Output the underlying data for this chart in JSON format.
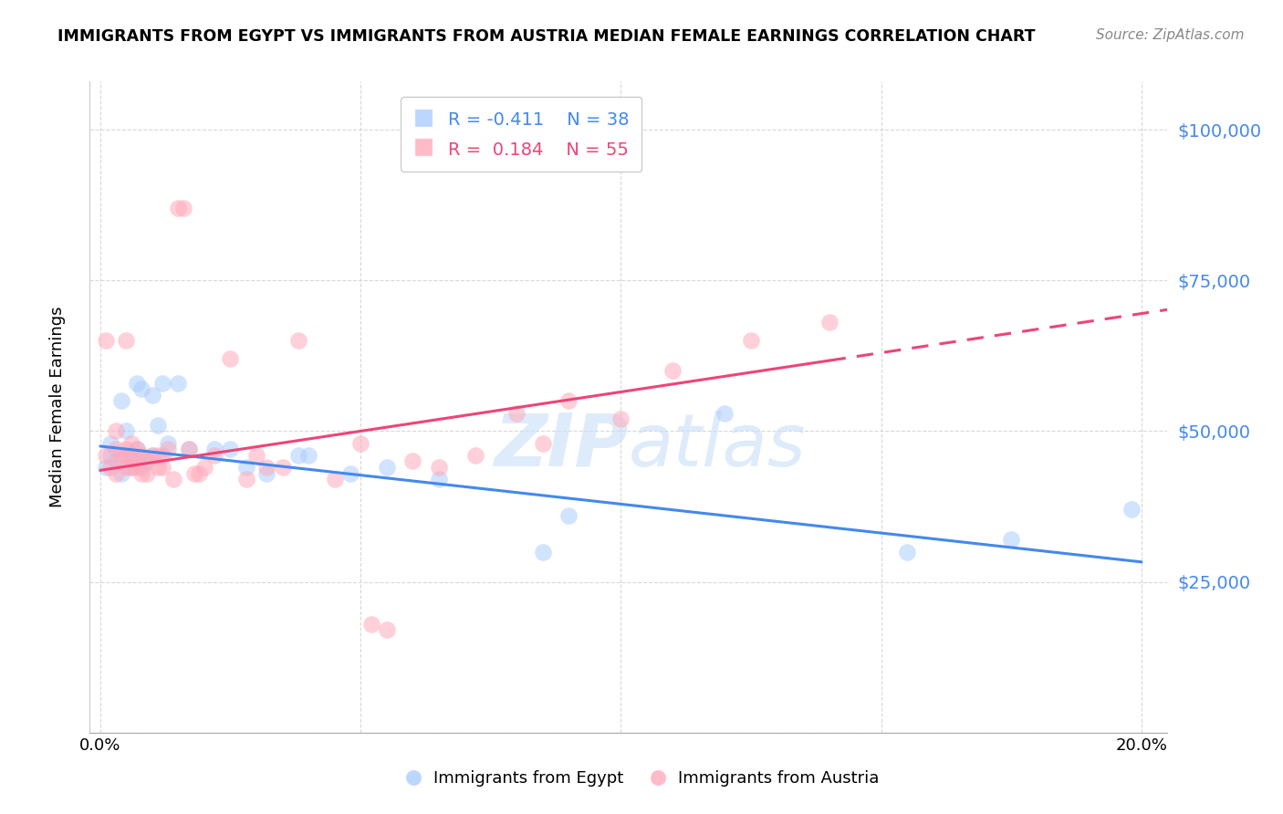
{
  "title": "IMMIGRANTS FROM EGYPT VS IMMIGRANTS FROM AUSTRIA MEDIAN FEMALE EARNINGS CORRELATION CHART",
  "source": "Source: ZipAtlas.com",
  "ylabel_label": "Median Female Earnings",
  "y_ticks": [
    0,
    25000,
    50000,
    75000,
    100000
  ],
  "y_tick_labels": [
    "",
    "$25,000",
    "$50,000",
    "$75,000",
    "$100,000"
  ],
  "xlim": [
    -0.002,
    0.205
  ],
  "ylim": [
    0,
    108000
  ],
  "background_color": "#ffffff",
  "grid_color": "#d8d8d8",
  "egypt_color": "#aaccff",
  "austria_color": "#ffaabb",
  "egypt_line_color": "#4488ee",
  "austria_line_color": "#ee4477",
  "watermark_color": "#c8dff8",
  "legend_egypt_R": "-0.411",
  "legend_egypt_N": "38",
  "legend_austria_R": "0.184",
  "legend_austria_N": "55",
  "egypt_x": [
    0.001,
    0.002,
    0.002,
    0.003,
    0.004,
    0.004,
    0.005,
    0.005,
    0.006,
    0.006,
    0.007,
    0.007,
    0.007,
    0.008,
    0.008,
    0.009,
    0.01,
    0.01,
    0.011,
    0.012,
    0.013,
    0.015,
    0.017,
    0.022,
    0.025,
    0.028,
    0.032,
    0.038,
    0.04,
    0.048,
    0.055,
    0.065,
    0.085,
    0.09,
    0.12,
    0.155,
    0.175,
    0.198
  ],
  "egypt_y": [
    44000,
    46000,
    48000,
    45000,
    43000,
    55000,
    46000,
    50000,
    44000,
    46000,
    47000,
    45000,
    58000,
    44000,
    57000,
    45000,
    46000,
    56000,
    51000,
    58000,
    48000,
    58000,
    47000,
    47000,
    47000,
    44000,
    43000,
    46000,
    46000,
    43000,
    44000,
    42000,
    30000,
    36000,
    53000,
    30000,
    32000,
    37000
  ],
  "austria_x": [
    0.001,
    0.001,
    0.002,
    0.003,
    0.003,
    0.003,
    0.004,
    0.004,
    0.005,
    0.005,
    0.005,
    0.006,
    0.006,
    0.006,
    0.007,
    0.007,
    0.007,
    0.008,
    0.008,
    0.009,
    0.009,
    0.01,
    0.011,
    0.011,
    0.012,
    0.012,
    0.013,
    0.014,
    0.015,
    0.016,
    0.017,
    0.018,
    0.019,
    0.02,
    0.022,
    0.025,
    0.028,
    0.03,
    0.032,
    0.035,
    0.038,
    0.045,
    0.05,
    0.052,
    0.055,
    0.06,
    0.065,
    0.072,
    0.08,
    0.085,
    0.09,
    0.1,
    0.11,
    0.125,
    0.14
  ],
  "austria_y": [
    46000,
    65000,
    44000,
    47000,
    50000,
    43000,
    46000,
    45000,
    65000,
    44000,
    47000,
    44000,
    46000,
    48000,
    44000,
    47000,
    45000,
    46000,
    43000,
    45000,
    43000,
    46000,
    44000,
    46000,
    46000,
    44000,
    47000,
    42000,
    87000,
    87000,
    47000,
    43000,
    43000,
    44000,
    46000,
    62000,
    42000,
    46000,
    44000,
    44000,
    65000,
    42000,
    48000,
    18000,
    17000,
    45000,
    44000,
    46000,
    53000,
    48000,
    55000,
    52000,
    60000,
    65000,
    68000
  ],
  "egypt_slope": -96000,
  "egypt_intercept": 47500,
  "austria_slope": 130000,
  "austria_intercept": 43500
}
